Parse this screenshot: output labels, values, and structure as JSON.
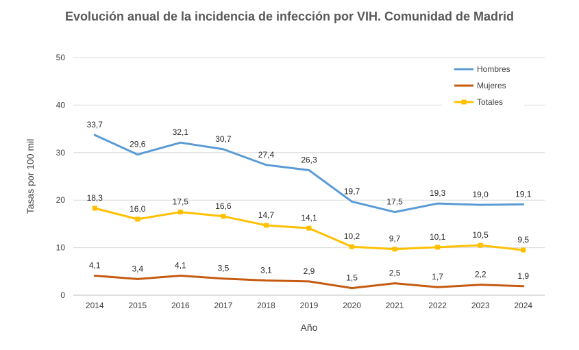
{
  "chart_data": {
    "type": "line",
    "title": "Evolución anual de la incidencia de infección por VIH. Comunidad de Madrid",
    "xlabel": "Año",
    "ylabel": "Tasas por 100 mil",
    "ylim": [
      0,
      50
    ],
    "yticks": [
      "0",
      "10",
      "20",
      "30",
      "40",
      "50"
    ],
    "grid": true,
    "legend_position": "top-right",
    "categories": [
      "2014",
      "2015",
      "2016",
      "2017",
      "2018",
      "2019",
      "2020",
      "2021",
      "2022",
      "2023",
      "2024"
    ],
    "series": [
      {
        "name": "Hombres",
        "color": "#5B9BD5",
        "marker": "none",
        "values": [
          33.7,
          29.6,
          32.1,
          30.7,
          27.4,
          26.3,
          19.7,
          17.5,
          19.3,
          19.0,
          19.1
        ],
        "labels": [
          "33,7",
          "29,6",
          "32,1",
          "30,7",
          "27,4",
          "26,3",
          "19,7",
          "17,5",
          "19,3",
          "19,0",
          "19,1"
        ]
      },
      {
        "name": "Mujeres",
        "color": "#C55A11",
        "marker": "none",
        "values": [
          4.1,
          3.4,
          4.1,
          3.5,
          3.1,
          2.9,
          1.5,
          2.5,
          1.7,
          2.2,
          1.9
        ],
        "labels": [
          "4,1",
          "3,4",
          "4,1",
          "3,5",
          "3,1",
          "2,9",
          "1,5",
          "2,5",
          "1,7",
          "2,2",
          "1,9"
        ]
      },
      {
        "name": "Totales",
        "color": "#FFC000",
        "marker": "square",
        "values": [
          18.3,
          16.0,
          17.5,
          16.6,
          14.7,
          14.1,
          10.2,
          9.7,
          10.1,
          10.5,
          9.5
        ],
        "labels": [
          "18,3",
          "16,0",
          "17,5",
          "16,6",
          "14,7",
          "14,1",
          "10,2",
          "9,7",
          "10,1",
          "10,5",
          "9,5"
        ]
      }
    ]
  }
}
